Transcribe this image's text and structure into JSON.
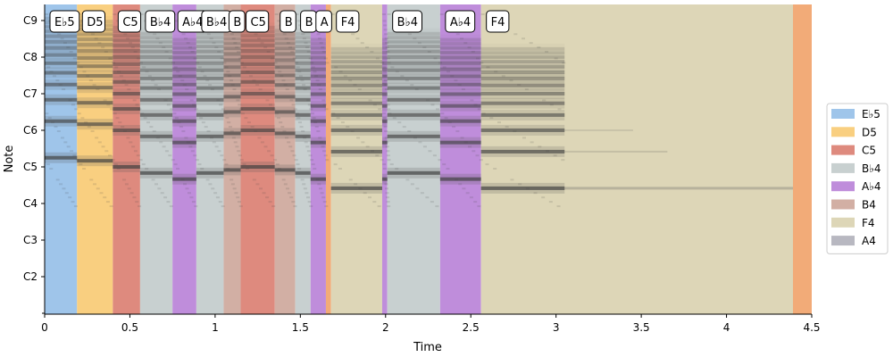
{
  "chart_data": {
    "type": "heatmap",
    "title": "",
    "xlabel": "Time",
    "ylabel": "Note",
    "xlim": [
      0,
      4.5
    ],
    "x_ticks": [
      0,
      0.5,
      1,
      1.5,
      2,
      2.5,
      3,
      3.5,
      4,
      4.5
    ],
    "x_tick_labels": [
      "0",
      "0.5",
      "1",
      "1.5",
      "2",
      "2.5",
      "3",
      "3.5",
      "4",
      "4.5"
    ],
    "y_ticks": [
      "C2",
      "C3",
      "C4",
      "C5",
      "C6",
      "C7",
      "C8",
      "C9"
    ],
    "legend_position": "right",
    "notes": [
      {
        "name": "E♭5",
        "color": "#9fc5ea"
      },
      {
        "name": "D5",
        "color": "#f9cf80"
      },
      {
        "name": "C5",
        "color": "#de8a7e"
      },
      {
        "name": "B♭4",
        "color": "#c8d0d0"
      },
      {
        "name": "A♭4",
        "color": "#bf8ddb"
      },
      {
        "name": "B4",
        "color": "#d2afa4"
      },
      {
        "name": "F4",
        "color": "#ddd6b7"
      },
      {
        "name": "A4",
        "color": "#b8b8c1"
      }
    ],
    "extra_region_color": "#f2ab78",
    "segments": [
      {
        "start": 0.0,
        "end": 0.19,
        "note": "E♭5",
        "label": "E♭5"
      },
      {
        "start": 0.19,
        "end": 0.4,
        "note": "D5",
        "label": "D5"
      },
      {
        "start": 0.4,
        "end": 0.56,
        "note": "C5",
        "label": "C5"
      },
      {
        "start": 0.56,
        "end": 0.75,
        "note": "B♭4",
        "label": "B♭4"
      },
      {
        "start": 0.75,
        "end": 0.89,
        "note": "A♭4",
        "label": "A♭4"
      },
      {
        "start": 0.89,
        "end": 1.05,
        "note": "B♭4",
        "label": "B♭4"
      },
      {
        "start": 1.05,
        "end": 1.15,
        "note": "B4",
        "label": "B"
      },
      {
        "start": 1.15,
        "end": 1.35,
        "note": "C5",
        "label": "C5"
      },
      {
        "start": 1.35,
        "end": 1.47,
        "note": "B4",
        "label": "B"
      },
      {
        "start": 1.47,
        "end": 1.56,
        "note": "B♭4",
        "label": "B"
      },
      {
        "start": 1.56,
        "end": 1.65,
        "note": "A♭4",
        "label": "A"
      },
      {
        "start": 1.65,
        "end": 1.68,
        "note": "extra",
        "label": ""
      },
      {
        "start": 1.68,
        "end": 1.98,
        "note": "F4",
        "label": "F4"
      },
      {
        "start": 1.98,
        "end": 2.01,
        "note": "A♭4",
        "label": ""
      },
      {
        "start": 2.01,
        "end": 2.32,
        "note": "B♭4",
        "label": "B♭4"
      },
      {
        "start": 2.32,
        "end": 2.56,
        "note": "A♭4",
        "label": "A♭4"
      },
      {
        "start": 2.56,
        "end": 4.39,
        "note": "F4",
        "label": "F4"
      },
      {
        "start": 4.39,
        "end": 4.5,
        "note": "extra",
        "label": ""
      }
    ]
  }
}
